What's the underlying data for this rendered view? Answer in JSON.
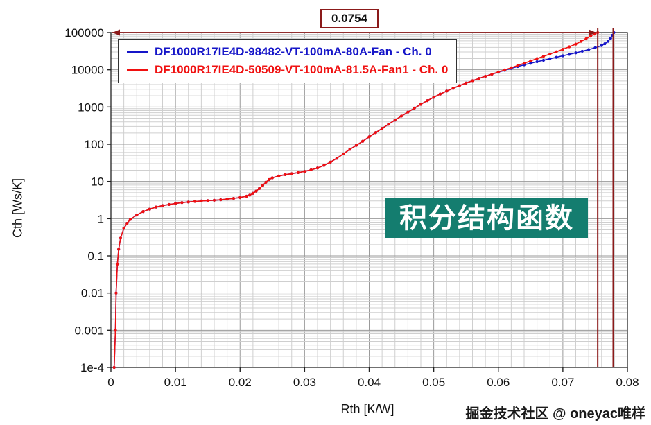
{
  "overlay": {
    "badge_text": "积分结构函数",
    "watermark": "掘金技术社区 @ oneyac唯样"
  },
  "chart_data": {
    "type": "line",
    "title": "",
    "xlabel": "Rth  [K/W]",
    "ylabel": "Cth  [Ws/K]",
    "x_scale": "linear",
    "y_scale": "log",
    "xlim": [
      0,
      0.08
    ],
    "ylim": [
      0.0001,
      100000
    ],
    "grid": true,
    "legend_position": "top-left",
    "cursor_label": "0.0754",
    "cursor_x": 0.0754,
    "cursor2_x": 0.0778,
    "cursor_color": "#8b1a1a",
    "x_minor_step": 0.002,
    "x_ticks": [
      {
        "v": 0,
        "label": "0"
      },
      {
        "v": 0.01,
        "label": "0.01"
      },
      {
        "v": 0.02,
        "label": "0.02"
      },
      {
        "v": 0.03,
        "label": "0.03"
      },
      {
        "v": 0.04,
        "label": "0.04"
      },
      {
        "v": 0.05,
        "label": "0.05"
      },
      {
        "v": 0.06,
        "label": "0.06"
      },
      {
        "v": 0.07,
        "label": "0.07"
      },
      {
        "v": 0.08,
        "label": "0.08"
      }
    ],
    "y_ticks": [
      {
        "v": 100000,
        "label": "100000"
      },
      {
        "v": 10000,
        "label": "10000"
      },
      {
        "v": 1000,
        "label": "1000"
      },
      {
        "v": 100,
        "label": "100"
      },
      {
        "v": 10,
        "label": "10"
      },
      {
        "v": 1,
        "label": "1"
      },
      {
        "v": 0.1,
        "label": "0.1"
      },
      {
        "v": 0.01,
        "label": "0.01"
      },
      {
        "v": 0.001,
        "label": "0.001"
      },
      {
        "v": 0.0001,
        "label": "1e-4"
      }
    ],
    "series": [
      {
        "name": "DF1000R17IE4D-98482-VT-100mA-80A-Fan - Ch. 0",
        "color": "#1515c8",
        "points": [
          [
            0.0005,
            0.0001
          ],
          [
            0.0007,
            0.001
          ],
          [
            0.0008,
            0.01
          ],
          [
            0.001,
            0.06
          ],
          [
            0.0012,
            0.15
          ],
          [
            0.0015,
            0.3
          ],
          [
            0.002,
            0.55
          ],
          [
            0.0025,
            0.75
          ],
          [
            0.003,
            0.95
          ],
          [
            0.004,
            1.25
          ],
          [
            0.005,
            1.55
          ],
          [
            0.006,
            1.8
          ],
          [
            0.007,
            2.05
          ],
          [
            0.008,
            2.25
          ],
          [
            0.009,
            2.4
          ],
          [
            0.01,
            2.55
          ],
          [
            0.011,
            2.7
          ],
          [
            0.012,
            2.8
          ],
          [
            0.013,
            2.9
          ],
          [
            0.014,
            2.98
          ],
          [
            0.015,
            3.05
          ],
          [
            0.016,
            3.12
          ],
          [
            0.017,
            3.22
          ],
          [
            0.018,
            3.35
          ],
          [
            0.019,
            3.5
          ],
          [
            0.02,
            3.7
          ],
          [
            0.021,
            4.0
          ],
          [
            0.0215,
            4.3
          ],
          [
            0.022,
            4.8
          ],
          [
            0.0225,
            5.5
          ],
          [
            0.023,
            6.5
          ],
          [
            0.0235,
            7.8
          ],
          [
            0.024,
            9.5
          ],
          [
            0.0245,
            11.2
          ],
          [
            0.025,
            12.5
          ],
          [
            0.026,
            14
          ],
          [
            0.027,
            15.2
          ],
          [
            0.028,
            16.2
          ],
          [
            0.029,
            17.3
          ],
          [
            0.03,
            18.6
          ],
          [
            0.031,
            20.5
          ],
          [
            0.032,
            23
          ],
          [
            0.033,
            27
          ],
          [
            0.034,
            33
          ],
          [
            0.035,
            42
          ],
          [
            0.036,
            55
          ],
          [
            0.037,
            73
          ],
          [
            0.038,
            93
          ],
          [
            0.039,
            120
          ],
          [
            0.04,
            158
          ],
          [
            0.041,
            205
          ],
          [
            0.042,
            265
          ],
          [
            0.043,
            345
          ],
          [
            0.044,
            445
          ],
          [
            0.045,
            570
          ],
          [
            0.046,
            730
          ],
          [
            0.047,
            930
          ],
          [
            0.048,
            1180
          ],
          [
            0.049,
            1480
          ],
          [
            0.05,
            1830
          ],
          [
            0.051,
            2230
          ],
          [
            0.052,
            2680
          ],
          [
            0.053,
            3180
          ],
          [
            0.054,
            3750
          ],
          [
            0.055,
            4380
          ],
          [
            0.056,
            5080
          ],
          [
            0.057,
            5850
          ],
          [
            0.058,
            6700
          ],
          [
            0.059,
            7600
          ],
          [
            0.06,
            8600
          ],
          [
            0.061,
            9700
          ],
          [
            0.062,
            10900
          ],
          [
            0.063,
            12200
          ],
          [
            0.064,
            13600
          ],
          [
            0.065,
            15000
          ],
          [
            0.066,
            16500
          ],
          [
            0.067,
            18000
          ],
          [
            0.068,
            19800
          ],
          [
            0.069,
            21700
          ],
          [
            0.07,
            23800
          ],
          [
            0.071,
            26000
          ],
          [
            0.072,
            28500
          ],
          [
            0.073,
            31500
          ],
          [
            0.074,
            35000
          ],
          [
            0.075,
            39000
          ],
          [
            0.076,
            45000
          ],
          [
            0.0765,
            50000
          ],
          [
            0.077,
            58000
          ],
          [
            0.0774,
            70000
          ],
          [
            0.0777,
            85000
          ],
          [
            0.0779,
            100000
          ]
        ]
      },
      {
        "name": "DF1000R17IE4D-50509-VT-100mA-81.5A-Fan1 - Ch. 0",
        "color": "#f01010",
        "points": [
          [
            0.0005,
            0.0001
          ],
          [
            0.0007,
            0.001
          ],
          [
            0.0008,
            0.01
          ],
          [
            0.001,
            0.06
          ],
          [
            0.0012,
            0.15
          ],
          [
            0.0015,
            0.3
          ],
          [
            0.002,
            0.55
          ],
          [
            0.0025,
            0.75
          ],
          [
            0.003,
            0.95
          ],
          [
            0.004,
            1.25
          ],
          [
            0.005,
            1.55
          ],
          [
            0.006,
            1.8
          ],
          [
            0.007,
            2.05
          ],
          [
            0.008,
            2.25
          ],
          [
            0.009,
            2.4
          ],
          [
            0.01,
            2.55
          ],
          [
            0.011,
            2.7
          ],
          [
            0.012,
            2.8
          ],
          [
            0.013,
            2.9
          ],
          [
            0.014,
            2.98
          ],
          [
            0.015,
            3.05
          ],
          [
            0.016,
            3.12
          ],
          [
            0.017,
            3.22
          ],
          [
            0.018,
            3.35
          ],
          [
            0.019,
            3.5
          ],
          [
            0.02,
            3.7
          ],
          [
            0.021,
            4.0
          ],
          [
            0.0215,
            4.3
          ],
          [
            0.022,
            4.8
          ],
          [
            0.0225,
            5.5
          ],
          [
            0.023,
            6.5
          ],
          [
            0.0235,
            7.8
          ],
          [
            0.024,
            9.5
          ],
          [
            0.0245,
            11.2
          ],
          [
            0.025,
            12.5
          ],
          [
            0.026,
            14
          ],
          [
            0.027,
            15.2
          ],
          [
            0.028,
            16.2
          ],
          [
            0.029,
            17.3
          ],
          [
            0.03,
            18.6
          ],
          [
            0.031,
            20.5
          ],
          [
            0.032,
            23
          ],
          [
            0.033,
            27
          ],
          [
            0.034,
            33
          ],
          [
            0.035,
            42
          ],
          [
            0.036,
            55
          ],
          [
            0.037,
            73
          ],
          [
            0.038,
            93
          ],
          [
            0.039,
            120
          ],
          [
            0.04,
            158
          ],
          [
            0.041,
            205
          ],
          [
            0.042,
            265
          ],
          [
            0.043,
            345
          ],
          [
            0.044,
            445
          ],
          [
            0.045,
            570
          ],
          [
            0.046,
            730
          ],
          [
            0.047,
            930
          ],
          [
            0.048,
            1180
          ],
          [
            0.049,
            1480
          ],
          [
            0.05,
            1830
          ],
          [
            0.051,
            2230
          ],
          [
            0.052,
            2680
          ],
          [
            0.053,
            3180
          ],
          [
            0.054,
            3750
          ],
          [
            0.055,
            4380
          ],
          [
            0.056,
            5080
          ],
          [
            0.057,
            5850
          ],
          [
            0.058,
            6700
          ],
          [
            0.059,
            7600
          ],
          [
            0.06,
            8700
          ],
          [
            0.061,
            9900
          ],
          [
            0.062,
            11300
          ],
          [
            0.063,
            13000
          ],
          [
            0.064,
            15000
          ],
          [
            0.065,
            17300
          ],
          [
            0.066,
            20000
          ],
          [
            0.067,
            23000
          ],
          [
            0.068,
            26500
          ],
          [
            0.069,
            30500
          ],
          [
            0.07,
            35500
          ],
          [
            0.071,
            41500
          ],
          [
            0.072,
            49000
          ],
          [
            0.0728,
            58000
          ],
          [
            0.0736,
            68000
          ],
          [
            0.0743,
            80000
          ],
          [
            0.0749,
            91000
          ],
          [
            0.0754,
            100000
          ]
        ]
      }
    ]
  }
}
